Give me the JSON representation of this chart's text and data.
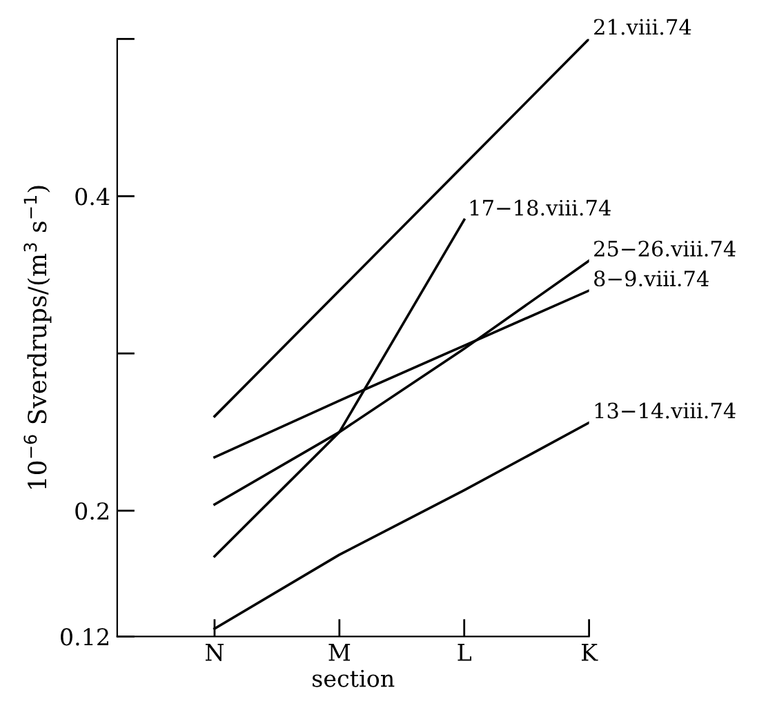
{
  "chart_data": {
    "type": "line",
    "xlabel": "section",
    "ylabel": "10$^{−6}$ Sverdrups/(m$^{3}$ s$^{−1}$)",
    "categories": [
      "N",
      "M",
      "L",
      "K"
    ],
    "ylim": [
      0.12,
      0.5
    ],
    "yticks": [
      0.12,
      0.2,
      {
        "value": 0.3,
        "label": null
      },
      0.4,
      {
        "value": 0.5,
        "label": null
      }
    ],
    "grid": false,
    "legend": false,
    "marker": "none",
    "line_style": "solid",
    "series": [
      {
        "name": "21.viii.74",
        "color": "#000000",
        "values": [
          0.26,
          0.34,
          0.42,
          0.5
        ]
      },
      {
        "name": "17−18.viii.74",
        "color": "#000000",
        "values": [
          0.171,
          0.25,
          0.385,
          null
        ]
      },
      {
        "name": "25−26.viii.74",
        "color": "#000000",
        "values": [
          0.204,
          0.25,
          0.303,
          0.359
        ]
      },
      {
        "name": "8−9.viii.74",
        "color": "#000000",
        "values": [
          0.234,
          0.27,
          0.305,
          0.34
        ]
      },
      {
        "name": "13−14.viii.74",
        "color": "#000000",
        "values": [
          0.125,
          0.172,
          0.213,
          0.256
        ]
      }
    ]
  }
}
